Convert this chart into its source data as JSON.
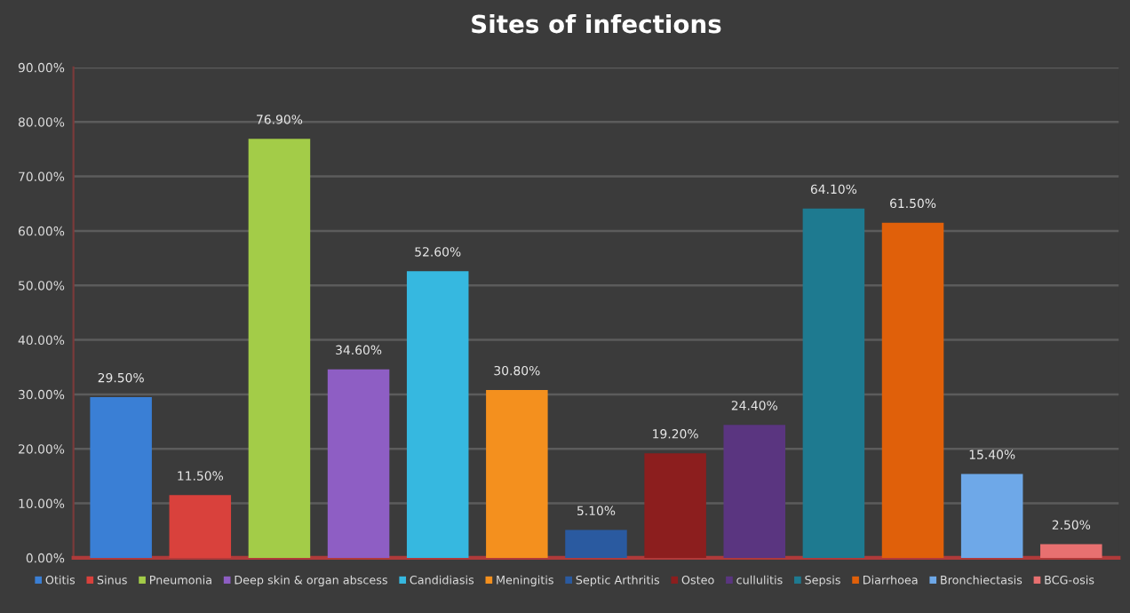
{
  "chart_data": {
    "type": "bar",
    "title": "Sites of infections",
    "categories": [
      null,
      null,
      null,
      null,
      null,
      null,
      null,
      null,
      null,
      null,
      null,
      null,
      null
    ],
    "series": [
      {
        "name": "Otitis",
        "color": "#3a7fd5",
        "values": [
          29.5,
          null,
          null,
          null,
          null,
          null,
          null,
          null,
          null,
          null,
          null,
          null,
          null
        ],
        "value_labels": [
          "29.50%",
          null,
          null,
          null,
          null,
          null,
          null,
          null,
          null,
          null,
          null,
          null,
          null
        ]
      },
      {
        "name": "Sinus",
        "color": "#d9413c",
        "values": [
          null,
          11.5,
          null,
          null,
          null,
          null,
          null,
          null,
          null,
          null,
          null,
          null,
          null
        ],
        "value_labels": [
          null,
          "11.50%",
          null,
          null,
          null,
          null,
          null,
          null,
          null,
          null,
          null,
          null,
          null
        ]
      },
      {
        "name": "Pneumonia",
        "color": "#a3cc48",
        "values": [
          null,
          null,
          76.9,
          null,
          null,
          null,
          null,
          null,
          null,
          null,
          null,
          null,
          null
        ],
        "value_labels": [
          null,
          null,
          "76.90%",
          null,
          null,
          null,
          null,
          null,
          null,
          null,
          null,
          null,
          null
        ]
      },
      {
        "name": "Deep skin & organ abscess",
        "color": "#8e5ec4",
        "values": [
          null,
          null,
          null,
          34.6,
          null,
          null,
          null,
          null,
          null,
          null,
          null,
          null,
          null
        ],
        "value_labels": [
          null,
          null,
          null,
          "34.60%",
          null,
          null,
          null,
          null,
          null,
          null,
          null,
          null,
          null
        ]
      },
      {
        "name": "Candidiasis",
        "color": "#36b8e0",
        "values": [
          null,
          null,
          null,
          null,
          52.6,
          null,
          null,
          null,
          null,
          null,
          null,
          null,
          null
        ],
        "value_labels": [
          null,
          null,
          null,
          null,
          "52.60%",
          null,
          null,
          null,
          null,
          null,
          null,
          null,
          null
        ]
      },
      {
        "name": "Meningitis",
        "color": "#f4901e",
        "values": [
          null,
          null,
          null,
          null,
          null,
          30.8,
          null,
          null,
          null,
          null,
          null,
          null,
          null
        ],
        "value_labels": [
          null,
          null,
          null,
          null,
          null,
          "30.80%",
          null,
          null,
          null,
          null,
          null,
          null,
          null
        ]
      },
      {
        "name": "Septic Arthritis",
        "color": "#2a5aa0",
        "values": [
          null,
          null,
          null,
          null,
          null,
          null,
          5.1,
          null,
          null,
          null,
          null,
          null,
          null
        ],
        "value_labels": [
          null,
          null,
          null,
          null,
          null,
          null,
          "5.10%",
          null,
          null,
          null,
          null,
          null,
          null
        ]
      },
      {
        "name": "Osteo",
        "color": "#8c1e1e",
        "values": [
          null,
          null,
          null,
          null,
          null,
          null,
          null,
          19.2,
          null,
          null,
          null,
          null,
          null
        ],
        "value_labels": [
          null,
          null,
          null,
          null,
          null,
          null,
          null,
          "19.20%",
          null,
          null,
          null,
          null,
          null
        ]
      },
      {
        "name": "cullulitis",
        "color": "#5a3580",
        "values": [
          null,
          null,
          null,
          null,
          null,
          null,
          null,
          null,
          24.4,
          null,
          null,
          null,
          null
        ],
        "value_labels": [
          null,
          null,
          null,
          null,
          null,
          null,
          null,
          null,
          "24.40%",
          null,
          null,
          null,
          null
        ]
      },
      {
        "name": "Sepsis",
        "color": "#1e7a90",
        "values": [
          null,
          null,
          null,
          null,
          null,
          null,
          null,
          null,
          null,
          64.1,
          null,
          null,
          null
        ],
        "value_labels": [
          null,
          null,
          null,
          null,
          null,
          null,
          null,
          null,
          null,
          "64.10%",
          null,
          null,
          null
        ]
      },
      {
        "name": "Diarrhoea",
        "color": "#e0600a",
        "values": [
          null,
          null,
          null,
          null,
          null,
          null,
          null,
          null,
          null,
          null,
          61.5,
          null,
          null
        ],
        "value_labels": [
          null,
          null,
          null,
          null,
          null,
          null,
          null,
          null,
          null,
          null,
          "61.50%",
          null,
          null
        ]
      },
      {
        "name": "Bronchiectasis",
        "color": "#6ea8e8",
        "values": [
          null,
          null,
          null,
          null,
          null,
          null,
          null,
          null,
          null,
          null,
          null,
          15.4,
          null
        ],
        "value_labels": [
          null,
          null,
          null,
          null,
          null,
          null,
          null,
          null,
          null,
          null,
          null,
          "15.40%",
          null
        ]
      },
      {
        "name": "BCG-osis",
        "color": "#e87070",
        "values": [
          null,
          null,
          null,
          null,
          null,
          null,
          null,
          null,
          null,
          null,
          null,
          null,
          2.5
        ],
        "value_labels": [
          null,
          null,
          null,
          null,
          null,
          null,
          null,
          null,
          null,
          null,
          null,
          null,
          "2.50%"
        ]
      }
    ],
    "ylim": [
      0,
      90
    ],
    "yticks": [
      {
        "value": 0,
        "label": "0.00%"
      },
      {
        "value": 10,
        "label": "10.00%"
      },
      {
        "value": 20,
        "label": "20.00%"
      },
      {
        "value": 30,
        "label": "30.00%"
      },
      {
        "value": 40,
        "label": "40.00%"
      },
      {
        "value": 50,
        "label": "50.00%"
      },
      {
        "value": 60,
        "label": "60.00%"
      },
      {
        "value": 70,
        "label": "70.00%"
      },
      {
        "value": 80,
        "label": "80.00%"
      },
      {
        "value": 90,
        "label": "90.00%"
      }
    ],
    "grid": "y",
    "legend": "bottom"
  }
}
